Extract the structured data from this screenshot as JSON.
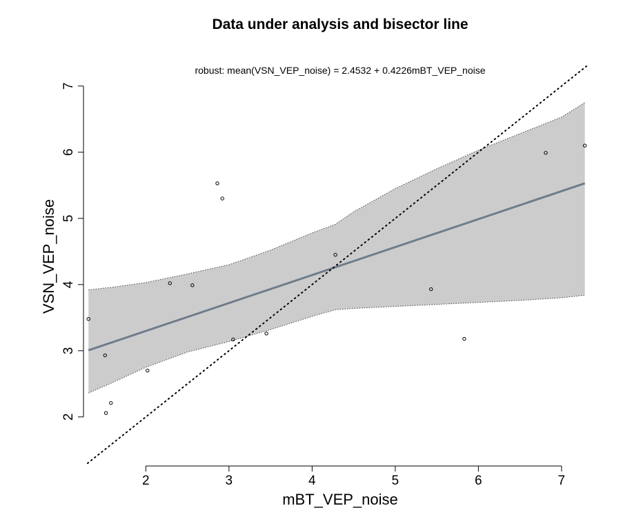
{
  "chart_data": {
    "type": "scatter",
    "title": "Data under analysis and bisector line",
    "subtitle": "robust: mean(VSN_VEP_noise) = 2.4532 + 0.4226mBT_VEP_noise",
    "xlabel": "mBT_VEP_noise",
    "ylabel": "VSN_VEP_noise",
    "xlim": [
      1.3,
      7.3
    ],
    "ylim": [
      1.3,
      7.3
    ],
    "x_ticks": [
      "2",
      "3",
      "4",
      "5",
      "6",
      "7"
    ],
    "y_ticks": [
      "2",
      "3",
      "4",
      "5",
      "6",
      "7"
    ],
    "grid": false,
    "points": [
      {
        "x": 1.31,
        "y": 3.48
      },
      {
        "x": 1.51,
        "y": 2.93
      },
      {
        "x": 1.52,
        "y": 2.06
      },
      {
        "x": 1.58,
        "y": 2.21
      },
      {
        "x": 2.02,
        "y": 2.7
      },
      {
        "x": 2.29,
        "y": 4.02
      },
      {
        "x": 2.56,
        "y": 3.99
      },
      {
        "x": 2.86,
        "y": 5.53
      },
      {
        "x": 2.92,
        "y": 5.3
      },
      {
        "x": 3.05,
        "y": 3.17
      },
      {
        "x": 3.45,
        "y": 3.26
      },
      {
        "x": 4.28,
        "y": 4.45
      },
      {
        "x": 5.43,
        "y": 3.93
      },
      {
        "x": 5.83,
        "y": 3.18
      },
      {
        "x": 6.81,
        "y": 5.99
      },
      {
        "x": 7.28,
        "y": 6.1
      }
    ],
    "fit_line": {
      "intercept": 2.4532,
      "slope": 0.4226,
      "color": "#6e7b8b"
    },
    "confidence_band": {
      "color": "#cccccc",
      "x": [
        1.31,
        1.6,
        2.0,
        2.5,
        3.0,
        3.5,
        4.0,
        4.28,
        4.5,
        5.0,
        5.5,
        6.0,
        6.5,
        7.0,
        7.28
      ],
      "upper": [
        3.92,
        3.96,
        4.03,
        4.16,
        4.3,
        4.52,
        4.78,
        4.91,
        5.1,
        5.45,
        5.75,
        6.03,
        6.28,
        6.53,
        6.75
      ],
      "lower": [
        2.36,
        2.52,
        2.75,
        2.98,
        3.14,
        3.32,
        3.52,
        3.62,
        3.64,
        3.67,
        3.7,
        3.73,
        3.76,
        3.8,
        3.84
      ]
    },
    "bisector": {
      "slope": 1,
      "intercept": 0,
      "style": "dotted",
      "color": "#000000"
    }
  }
}
